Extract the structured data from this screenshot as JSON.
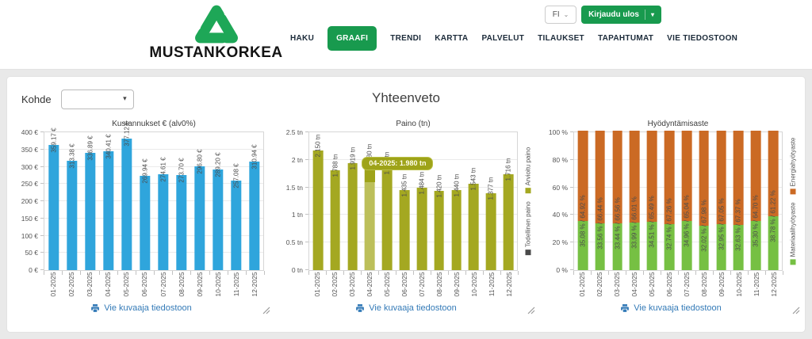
{
  "header": {
    "brand": "MUSTANKORKEA",
    "language": "FI",
    "logout_label": "Kirjaudu ulos",
    "nav": [
      {
        "label": "HAKU",
        "active": false
      },
      {
        "label": "GRAAFI",
        "active": true
      },
      {
        "label": "TRENDI",
        "active": false
      },
      {
        "label": "KARTTA",
        "active": false
      },
      {
        "label": "PALVELUT",
        "active": false
      },
      {
        "label": "TILAUKSET",
        "active": false
      },
      {
        "label": "TAPAHTUMAT",
        "active": false
      },
      {
        "label": "VIE TIEDOSTOON",
        "active": false
      }
    ]
  },
  "filters": {
    "kohde_label": "Kohde",
    "kohde_value": ""
  },
  "page_title": "Yhteenveto",
  "export_link_label": "Vie kuvaaja tiedostoon",
  "colors": {
    "brand_green": "#189a4e",
    "link_blue": "#337ab7",
    "cost_bar": "#2fa5dc",
    "weight_bar": "#a4a821",
    "weight_bar_highlight": "#bcbf5a",
    "material_green": "#76c043",
    "energy_orange": "#cb6a24"
  },
  "chart_data": [
    {
      "type": "bar",
      "title": "Kustannukset € (alv0%)",
      "categories": [
        "01-2025",
        "02-2025",
        "03-2025",
        "04-2025",
        "05-2025",
        "06-2025",
        "07-2025",
        "08-2025",
        "09-2025",
        "10-2025",
        "11-2025",
        "12-2025"
      ],
      "values": [
        359.17,
        313.38,
        336.89,
        340.41,
        377.12,
        269.94,
        274.61,
        273.7,
        296.8,
        289.2,
        257.08,
        310.94
      ],
      "bar_labels": [
        "359.17 €",
        "313.38 €",
        "336.89 €",
        "340.41 €",
        "377.12 €",
        "269.94 €",
        "274.61 €",
        "273.70 €",
        "296.80 €",
        "289.20 €",
        "257.08 €",
        "310.94 €"
      ],
      "ylim": [
        0,
        400
      ],
      "ytick_labels": [
        "0 €",
        "50 €",
        "100 €",
        "150 €",
        "200 €",
        "250 €",
        "300 €",
        "350 €",
        "400 €"
      ],
      "bar_color": "#2fa5dc",
      "grid": true,
      "legend_position": "none"
    },
    {
      "type": "bar",
      "title": "Paino (tn)",
      "categories": [
        "01-2025",
        "02-2025",
        "03-2025",
        "04-2025",
        "05-2025",
        "06-2025",
        "07-2025",
        "08-2025",
        "09-2025",
        "10-2025",
        "11-2025",
        "12-2025"
      ],
      "values": [
        2.15,
        1.788,
        1.919,
        1.98,
        1.837,
        1.435,
        1.484,
        1.42,
        1.44,
        1.543,
        1.377,
        1.716
      ],
      "bar_labels": [
        "2.150 tn",
        "1.788 tn",
        "1.919 tn",
        "1.980 tn",
        "1.837 tn",
        "1.435 tn",
        "1.484 tn",
        "1.420 tn",
        "1.440 tn",
        "1.543 tn",
        "1.377 tn",
        "1.716 tn"
      ],
      "ylim": [
        0,
        2.5
      ],
      "ytick_labels": [
        "0 tn",
        "0.5 tn",
        "1 tn",
        "1.5 tn",
        "2 tn",
        "2.5 tn"
      ],
      "bar_color": "#a4a821",
      "highlight_index": 3,
      "highlight_color": "#bcbf5a",
      "tooltip": {
        "text": "04-2025: 1.980 tn",
        "bar_index": 3
      },
      "legend": [
        {
          "label": "Todellinen paino",
          "color": "#4a4a4a"
        },
        {
          "label": "Arvioitu paino",
          "color": "#a4a821"
        }
      ],
      "grid": true,
      "legend_position": "right-rotated"
    },
    {
      "type": "stacked_bar",
      "title": "Hyödyntämisaste",
      "categories": [
        "01-2025",
        "02-2025",
        "03-2025",
        "04-2025",
        "05-2025",
        "06-2025",
        "07-2025",
        "08-2025",
        "09-2025",
        "10-2025",
        "11-2025",
        "12-2025"
      ],
      "series": [
        {
          "name": "Materiaalihyötyaste",
          "color": "#76c043",
          "values": [
            35.08,
            33.56,
            33.44,
            33.99,
            34.51,
            32.74,
            34.96,
            32.02,
            32.95,
            32.63,
            35.3,
            38.78
          ]
        },
        {
          "name": "Energiahyötyaste",
          "color": "#cb6a24",
          "values": [
            64.92,
            66.44,
            66.56,
            66.01,
            65.49,
            67.26,
            65.04,
            67.98,
            67.05,
            67.37,
            64.7,
            61.22
          ]
        }
      ],
      "bar_labels": [
        "35.08 % / 64.92 %",
        "33.56 % / 66.44 %",
        "33.44 % / 66.56 %",
        "33.99 % / 66.01 %",
        "34.51 % / 65.49 %",
        "32.74 % / 67.26 %",
        "34.96 % / 65.04 %",
        "32.02 % / 67.98 %",
        "32.95 % / 67.05 %",
        "32.63 % / 67.37 %",
        "35.30 % / 64.70 %",
        "38.78 % / 61.22 %"
      ],
      "ylim": [
        0,
        100
      ],
      "ytick_labels": [
        "0 %",
        "20 %",
        "40 %",
        "60 %",
        "80 %",
        "100 %"
      ],
      "legend": [
        {
          "label": "Materiaalihyötyaste",
          "color": "#76c043"
        },
        {
          "label": "Energiahyötyaste",
          "color": "#cb6a24"
        }
      ],
      "grid": true,
      "legend_position": "right-rotated"
    }
  ]
}
